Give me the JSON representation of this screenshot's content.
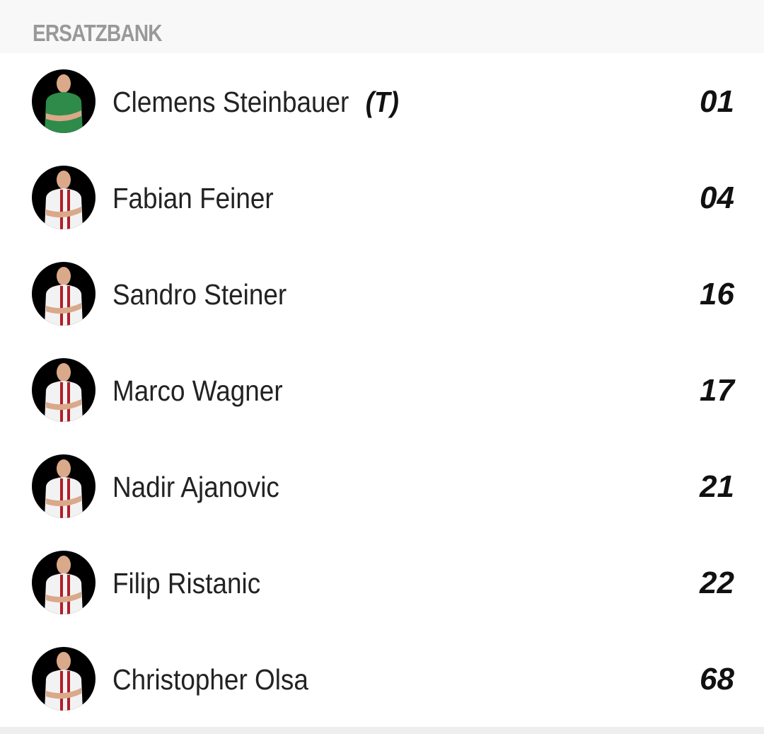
{
  "section_title": "ERSATZBANK",
  "players": [
    {
      "name": "Clemens Steinbauer",
      "tag": "(T)",
      "number": "01",
      "jersey": "#2e8b4a",
      "stripe": "#2e8b4a"
    },
    {
      "name": "Fabian Feiner",
      "tag": "",
      "number": "04",
      "jersey": "#f2f2f2",
      "stripe": "#b01e2a"
    },
    {
      "name": "Sandro Steiner",
      "tag": "",
      "number": "16",
      "jersey": "#f2f2f2",
      "stripe": "#b01e2a"
    },
    {
      "name": "Marco Wagner",
      "tag": "",
      "number": "17",
      "jersey": "#f2f2f2",
      "stripe": "#b01e2a"
    },
    {
      "name": "Nadir Ajanovic",
      "tag": "",
      "number": "21",
      "jersey": "#f2f2f2",
      "stripe": "#b01e2a"
    },
    {
      "name": "Filip Ristanic",
      "tag": "",
      "number": "22",
      "jersey": "#f2f2f2",
      "stripe": "#b01e2a"
    },
    {
      "name": "Christopher Olsa",
      "tag": "",
      "number": "68",
      "jersey": "#f2f2f2",
      "stripe": "#b01e2a"
    }
  ]
}
